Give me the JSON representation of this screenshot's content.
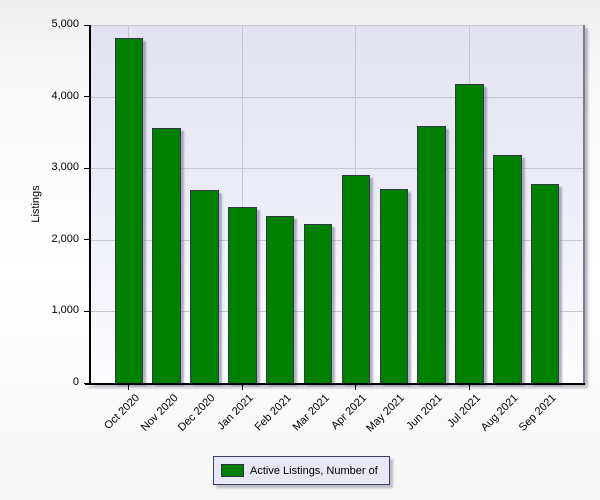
{
  "chart_data": {
    "type": "bar",
    "title": "",
    "xlabel": "",
    "ylabel": "Listings",
    "categories": [
      "Oct 2020",
      "Nov 2020",
      "Dec 2020",
      "Jan 2021",
      "Feb 2021",
      "Mar 2021",
      "Apr 2021",
      "May 2021",
      "Jun 2021",
      "Jul 2021",
      "Aug 2021",
      "Sep 2021"
    ],
    "values": [
      4825,
      3565,
      2690,
      2465,
      2330,
      2225,
      2910,
      2705,
      3590,
      4170,
      3185,
      2780
    ],
    "series": [
      {
        "name": "Active Listings, Number of",
        "values": [
          4825,
          3565,
          2690,
          2465,
          2330,
          2225,
          2910,
          2705,
          3590,
          4170,
          3185,
          2780
        ]
      }
    ],
    "ylim": [
      0,
      5000
    ],
    "ytick_step": 1000,
    "ytick_labels": [
      "0",
      "1,000",
      "2,000",
      "3,000",
      "4,000",
      "5,000"
    ],
    "xtick_interval": 3,
    "grid": true,
    "legend_position": "bottom",
    "bar_color": "#008000"
  },
  "axis": {
    "ylabel": "Listings"
  },
  "legend": {
    "label": "Active Listings, Number of"
  },
  "colors": {
    "bar_fill": "#008000",
    "bar_border": "#36364a",
    "plot_bg_top": "#e2e2f3",
    "plot_bg_bottom": "#fdfdff",
    "gridline": "#c6c6d4",
    "axis": "#000000",
    "legend_bg": "#e7e7f6"
  }
}
